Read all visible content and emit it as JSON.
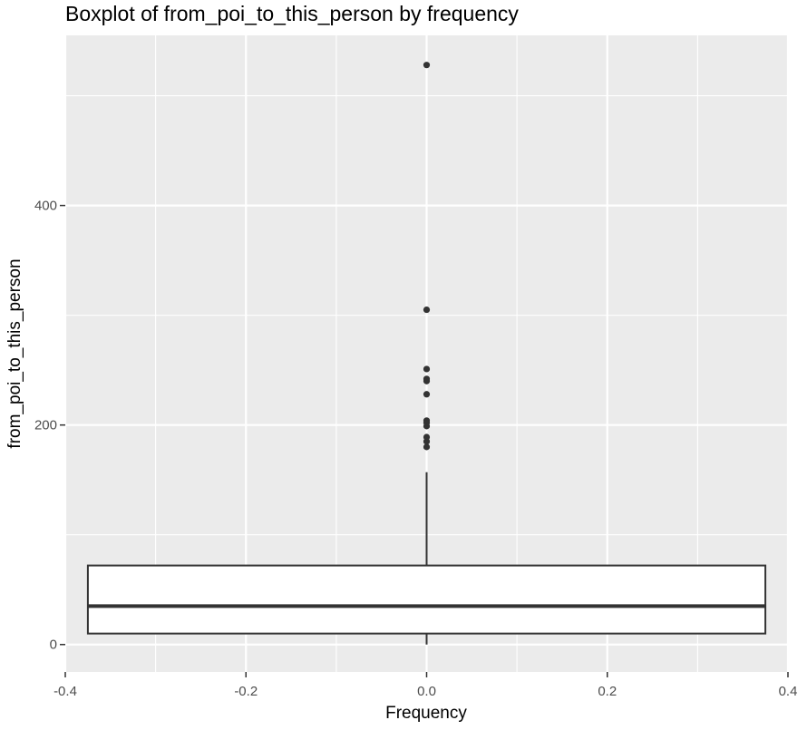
{
  "chart_data": {
    "type": "box",
    "title": "Boxplot of from_poi_to_this_person by frequency",
    "xlabel": "Frequency",
    "ylabel": "from_poi_to_this_person",
    "xlim": [
      -0.4,
      0.4
    ],
    "ylim": [
      -25,
      555
    ],
    "x_ticks": [
      -0.4,
      -0.2,
      0.0,
      0.2,
      0.4
    ],
    "x_tick_labels": [
      "-0.4",
      "-0.2",
      "0.0",
      "0.2",
      "0.4"
    ],
    "y_ticks": [
      0,
      200,
      400
    ],
    "y_tick_labels": [
      "0",
      "200",
      "400"
    ],
    "grid": true,
    "box": {
      "x": 0,
      "x_range": [
        -0.375,
        0.375
      ],
      "whisker_low": 0,
      "q1": 10,
      "median": 35,
      "q3": 72,
      "whisker_high": 157,
      "outliers": [
        180,
        185,
        189,
        199,
        202,
        204,
        228,
        240,
        242,
        251,
        305,
        528
      ]
    },
    "colors": {
      "panel": "#ebebeb",
      "grid": "#ffffff",
      "box_fill": "#ffffff",
      "box_line": "#333333",
      "points": "#333333"
    }
  }
}
